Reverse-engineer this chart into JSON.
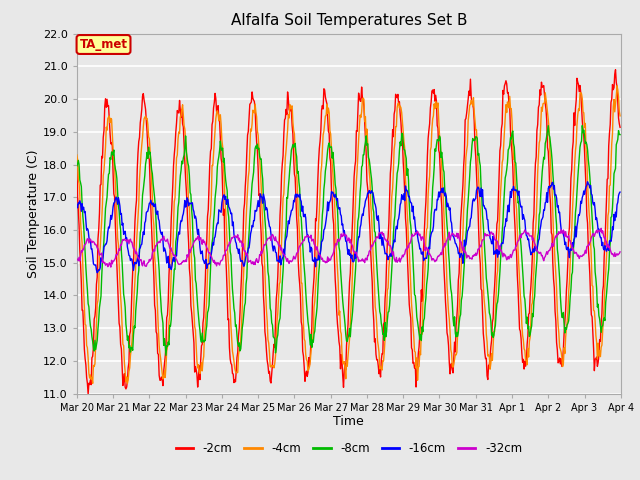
{
  "title": "Alfalfa Soil Temperatures Set B",
  "xlabel": "Time",
  "ylabel": "Soil Temperature (C)",
  "ylim": [
    11.0,
    22.0
  ],
  "yticks": [
    11.0,
    12.0,
    13.0,
    14.0,
    15.0,
    16.0,
    17.0,
    18.0,
    19.0,
    20.0,
    21.0,
    22.0
  ],
  "plot_background": "#e8e8e8",
  "fig_background": "#e8e8e8",
  "grid_color": "#ffffff",
  "series_colors": {
    "-2cm": "#ff0000",
    "-4cm": "#ff8800",
    "-8cm": "#00bb00",
    "-16cm": "#0000ff",
    "-32cm": "#cc00cc"
  },
  "ta_met_label": "TA_met",
  "ta_met_bg": "#ffff99",
  "ta_met_border": "#cc0000",
  "ta_met_text": "#cc0000",
  "n_days": 15,
  "points_per_day": 48,
  "legend_labels": [
    "-2cm",
    "-4cm",
    "-8cm",
    "-16cm",
    "-32cm"
  ]
}
